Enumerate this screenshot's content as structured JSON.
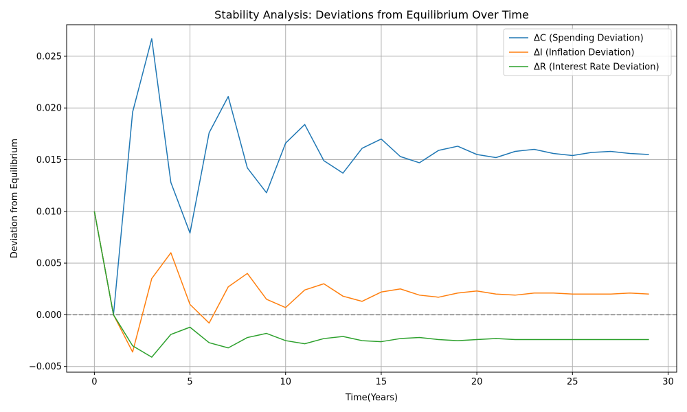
{
  "chart_data": {
    "type": "line",
    "title": "Stability Analysis: Deviations from Equilibrium Over Time",
    "xlabel": "Time(Years)",
    "ylabel": "Deviation from Equilibrium",
    "xlim": [
      -1.45,
      30.45
    ],
    "ylim": [
      -0.00555,
      0.02805
    ],
    "xticks": [
      0,
      5,
      10,
      15,
      20,
      25,
      30
    ],
    "xtick_labels": [
      "0",
      "5",
      "10",
      "15",
      "20",
      "25",
      "30"
    ],
    "yticks": [
      -0.005,
      0.0,
      0.005,
      0.01,
      0.015,
      0.02,
      0.025
    ],
    "ytick_labels": [
      "−0.005",
      "0.000",
      "0.005",
      "0.010",
      "0.015",
      "0.020",
      "0.025"
    ],
    "grid": true,
    "legend_position": "top-right",
    "reference_line": {
      "y": 0,
      "style": "dashed",
      "color": "#808080"
    },
    "x": [
      0,
      1,
      2,
      3,
      4,
      5,
      6,
      7,
      8,
      9,
      10,
      11,
      12,
      13,
      14,
      15,
      16,
      17,
      18,
      19,
      20,
      21,
      22,
      23,
      24,
      25,
      26,
      27,
      28,
      29
    ],
    "series": [
      {
        "name": "ΔC (Spending Deviation)",
        "color": "#1f77b4",
        "values": [
          0.01,
          0.0,
          0.0196,
          0.0267,
          0.0128,
          0.0079,
          0.0176,
          0.0211,
          0.0142,
          0.0118,
          0.0166,
          0.0184,
          0.0149,
          0.0137,
          0.0161,
          0.017,
          0.0153,
          0.0147,
          0.0159,
          0.0163,
          0.0155,
          0.0152,
          0.0158,
          0.016,
          0.0156,
          0.0154,
          0.0157,
          0.0158,
          0.0156,
          0.0155
        ]
      },
      {
        "name": "ΔI (Inflation Deviation)",
        "color": "#ff7f0e",
        "values": [
          0.01,
          0.0,
          -0.0036,
          0.0035,
          0.006,
          0.001,
          -0.0008,
          0.0027,
          0.004,
          0.0015,
          0.0007,
          0.0024,
          0.003,
          0.0018,
          0.0013,
          0.0022,
          0.0025,
          0.0019,
          0.0017,
          0.0021,
          0.0023,
          0.002,
          0.0019,
          0.0021,
          0.0021,
          0.002,
          0.002,
          0.002,
          0.0021,
          0.002
        ]
      },
      {
        "name": "ΔR (Interest Rate Deviation)",
        "color": "#2ca02c",
        "values": [
          0.01,
          0.0,
          -0.003,
          -0.0041,
          -0.0019,
          -0.0012,
          -0.0027,
          -0.0032,
          -0.0022,
          -0.0018,
          -0.0025,
          -0.0028,
          -0.0023,
          -0.0021,
          -0.0025,
          -0.0026,
          -0.0023,
          -0.0022,
          -0.0024,
          -0.0025,
          -0.0024,
          -0.0023,
          -0.0024,
          -0.0024,
          -0.0024,
          -0.0024,
          -0.0024,
          -0.0024,
          -0.0024,
          -0.0024
        ]
      }
    ]
  }
}
